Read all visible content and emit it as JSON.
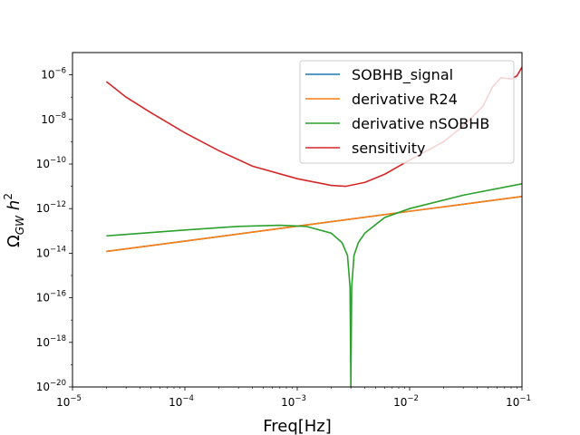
{
  "chart_data": {
    "type": "line",
    "xscale": "log",
    "yscale": "log",
    "xlabel": "Freq[Hz]",
    "ylabel": "Ω_GW h^2",
    "ylabel_main": "Ω",
    "ylabel_sub": "GW",
    "ylabel_h": "h",
    "ylabel_sup": "2",
    "xlim": [
      1e-05,
      0.1
    ],
    "ylim": [
      1e-20,
      1e-05
    ],
    "xticks": [
      {
        "base": "10",
        "exp": "−5",
        "v": 1e-05
      },
      {
        "base": "10",
        "exp": "−4",
        "v": 0.0001
      },
      {
        "base": "10",
        "exp": "−3",
        "v": 0.001
      },
      {
        "base": "10",
        "exp": "−2",
        "v": 0.01
      },
      {
        "base": "10",
        "exp": "−1",
        "v": 0.1
      }
    ],
    "yticks": [
      {
        "base": "10",
        "exp": "−20",
        "v": 1e-20
      },
      {
        "base": "10",
        "exp": "−18",
        "v": 1e-18
      },
      {
        "base": "10",
        "exp": "−16",
        "v": 1e-16
      },
      {
        "base": "10",
        "exp": "−14",
        "v": 1e-14
      },
      {
        "base": "10",
        "exp": "−12",
        "v": 1e-12
      },
      {
        "base": "10",
        "exp": "−10",
        "v": 1e-10
      },
      {
        "base": "10",
        "exp": "−8",
        "v": 1e-08
      },
      {
        "base": "10",
        "exp": "−6",
        "v": 1e-06
      }
    ],
    "legend_position": "top-right",
    "series": [
      {
        "name": "SOBHB_signal",
        "color": "#1f77b4",
        "points": [
          [
            2e-05,
            1.2e-14
          ],
          [
            0.0001,
            3.5e-14
          ],
          [
            0.001,
            1.63e-13
          ],
          [
            0.01,
            7.6e-13
          ],
          [
            0.1,
            3.5e-12
          ]
        ]
      },
      {
        "name": "derivative R24",
        "color": "#ff7f0e",
        "points": [
          [
            2e-05,
            1.2e-14
          ],
          [
            0.0001,
            3.5e-14
          ],
          [
            0.001,
            1.63e-13
          ],
          [
            0.01,
            7.6e-13
          ],
          [
            0.1,
            3.5e-12
          ]
        ]
      },
      {
        "name": "derivative nSOBHB",
        "color": "#2ca02c",
        "points": [
          [
            2e-05,
            6e-14
          ],
          [
            0.0001,
            1.1e-13
          ],
          [
            0.0003,
            1.6e-13
          ],
          [
            0.0007,
            1.8e-13
          ],
          [
            0.0012,
            1.6e-13
          ],
          [
            0.002,
            8e-14
          ],
          [
            0.0025,
            3e-14
          ],
          [
            0.0028,
            8e-15
          ],
          [
            0.00295,
            3e-16
          ],
          [
            0.003,
            1e-20
          ],
          [
            0.00305,
            3e-16
          ],
          [
            0.0032,
            8e-15
          ],
          [
            0.0035,
            3e-14
          ],
          [
            0.004,
            8e-14
          ],
          [
            0.006,
            4e-13
          ],
          [
            0.01,
            1e-12
          ],
          [
            0.03,
            4e-12
          ],
          [
            0.1,
            1.3e-11
          ]
        ]
      },
      {
        "name": "sensitivity",
        "color": "#d62728",
        "points": [
          [
            2e-05,
            5e-07
          ],
          [
            3e-05,
            1e-07
          ],
          [
            5e-05,
            2e-08
          ],
          [
            0.0001,
            2.5e-09
          ],
          [
            0.0002,
            4e-10
          ],
          [
            0.0004,
            8e-11
          ],
          [
            0.001,
            2.2e-11
          ],
          [
            0.002,
            1.1e-11
          ],
          [
            0.0027,
            1e-11
          ],
          [
            0.004,
            1.5e-11
          ],
          [
            0.006,
            3.5e-11
          ],
          [
            0.01,
            1.5e-10
          ],
          [
            0.02,
            1e-09
          ],
          [
            0.03,
            5e-09
          ],
          [
            0.045,
            4e-08
          ],
          [
            0.055,
            3e-07
          ],
          [
            0.065,
            7.5e-07
          ],
          [
            0.08,
            6.5e-07
          ],
          [
            0.09,
            9e-07
          ],
          [
            0.1,
            2.2e-06
          ]
        ]
      }
    ]
  }
}
